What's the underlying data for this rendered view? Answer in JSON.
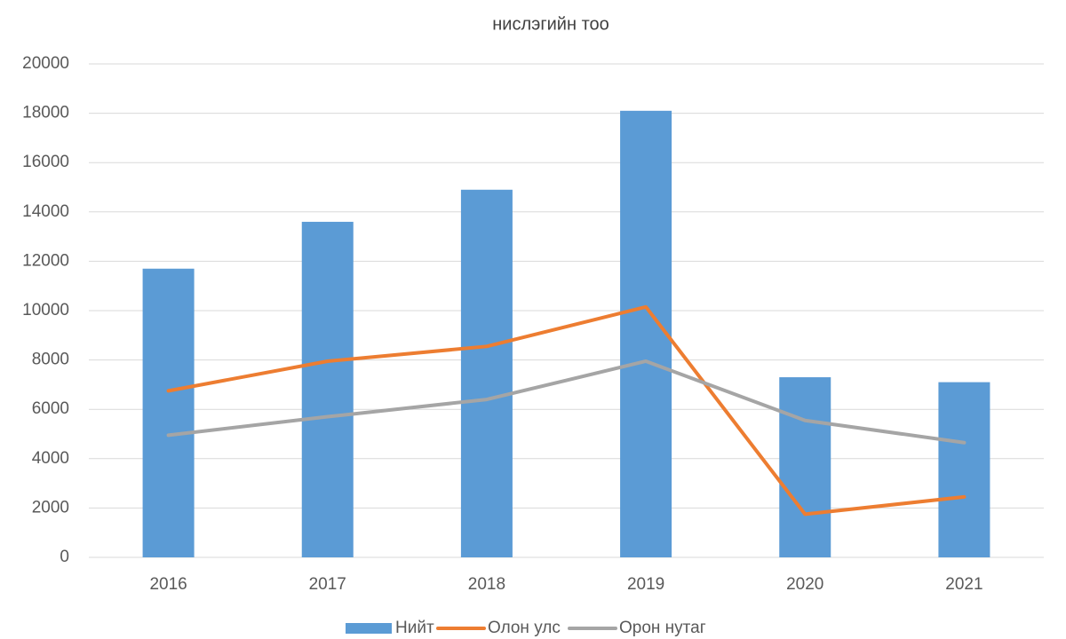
{
  "chart_data": {
    "type": "combo",
    "title": "нислэгийн тоо",
    "categories": [
      "2016",
      "2017",
      "2018",
      "2019",
      "2020",
      "2021"
    ],
    "series": [
      {
        "name": "Нийт",
        "type": "bar",
        "color": "#5b9bd5",
        "values": [
          11700,
          13600,
          14900,
          18100,
          7300,
          7100
        ]
      },
      {
        "name": "Олон улс",
        "type": "line",
        "color": "#ed7d31",
        "values": [
          6750,
          7950,
          8550,
          10150,
          1750,
          2450
        ]
      },
      {
        "name": "Орон нутаг",
        "type": "line",
        "color": "#a5a5a5",
        "values": [
          4950,
          5700,
          6400,
          7950,
          5550,
          4650
        ]
      }
    ],
    "ylim": [
      0,
      20000
    ],
    "yticks": [
      0,
      2000,
      4000,
      6000,
      8000,
      10000,
      12000,
      14000,
      16000,
      18000,
      20000
    ],
    "grid": true,
    "legend": "bottom"
  }
}
